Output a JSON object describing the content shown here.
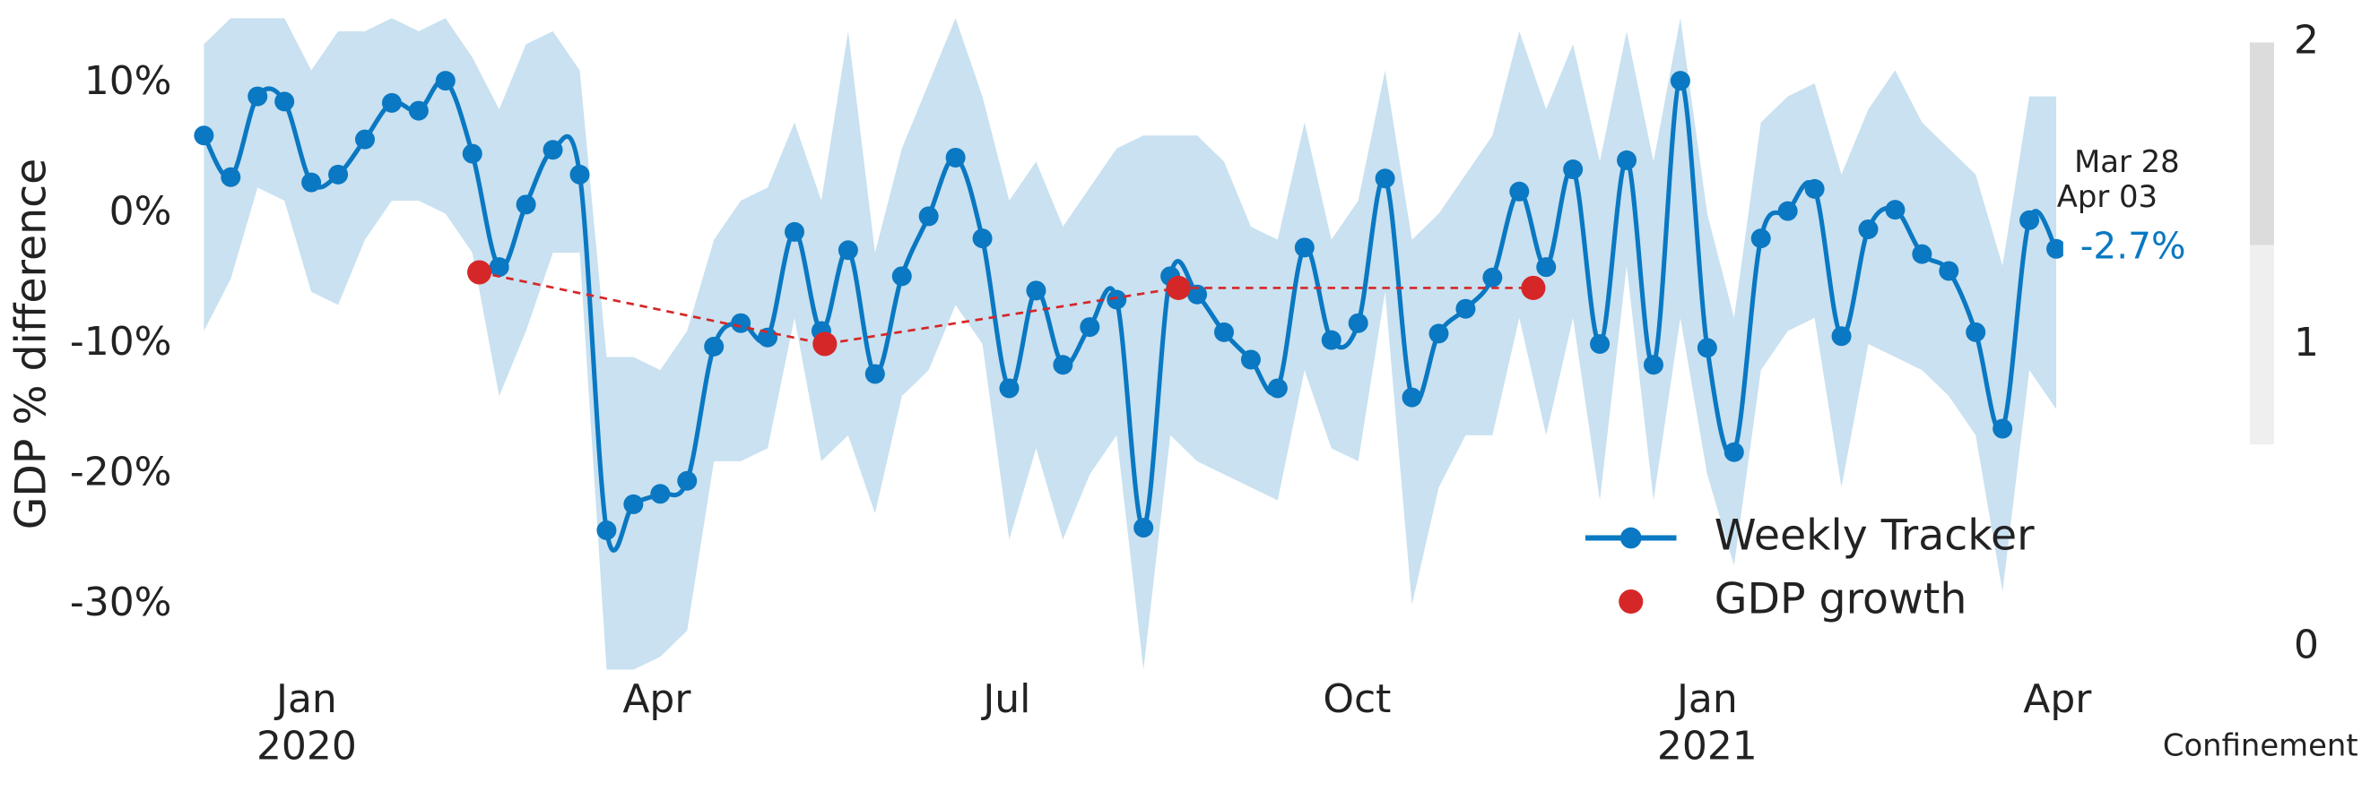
{
  "chart_data": {
    "type": "line",
    "y_label": "GDP % difference",
    "xlim": [
      -1,
      15.05
    ],
    "ylim": [
      -35,
      15
    ],
    "xticks": [
      {
        "value": 0,
        "label": "Jan"
      },
      {
        "value": 3,
        "label": "Apr"
      },
      {
        "value": 6,
        "label": "Jul"
      },
      {
        "value": 9,
        "label": "Oct"
      },
      {
        "value": 12,
        "label": "Jan"
      },
      {
        "value": 15,
        "label": "Apr"
      }
    ],
    "x_year_labels": [
      {
        "value": 0,
        "label": "2020"
      },
      {
        "value": 12,
        "label": "2021"
      }
    ],
    "yticks": [
      {
        "value": 10,
        "label": "10%"
      },
      {
        "value": 0,
        "label": "0%"
      },
      {
        "value": -10,
        "label": "-10%"
      },
      {
        "value": -20,
        "label": "-20%"
      },
      {
        "value": -30,
        "label": "-30%"
      }
    ],
    "x": [
      -0.88,
      -0.65,
      -0.42,
      -0.19,
      0.04,
      0.27,
      0.5,
      0.73,
      0.96,
      1.19,
      1.42,
      1.65,
      1.88,
      2.11,
      2.34,
      2.57,
      2.8,
      3.03,
      3.26,
      3.49,
      3.72,
      3.95,
      4.18,
      4.41,
      4.64,
      4.87,
      5.1,
      5.33,
      5.56,
      5.79,
      6.02,
      6.25,
      6.48,
      6.71,
      6.94,
      7.17,
      7.4,
      7.63,
      7.86,
      8.09,
      8.32,
      8.55,
      8.78,
      9.01,
      9.24,
      9.47,
      9.7,
      9.93,
      10.16,
      10.39,
      10.62,
      10.85,
      11.08,
      11.31,
      11.54,
      11.77,
      12.0,
      12.23,
      12.46,
      12.69,
      12.92,
      13.15,
      13.38,
      13.61,
      13.84,
      14.07,
      14.3,
      14.53,
      14.76,
      14.99
    ],
    "band": {
      "color": "#c9e1f0",
      "upper": [
        13,
        15,
        15,
        15,
        11,
        14,
        14,
        15,
        14,
        15,
        12,
        8,
        13,
        14,
        11,
        -11,
        -11,
        -12,
        -9,
        -2,
        1,
        2,
        7,
        1,
        14,
        -3,
        5,
        10,
        15,
        9,
        1,
        4,
        -1,
        2,
        5,
        6,
        6,
        6,
        4,
        -1,
        -2,
        7,
        -2,
        1,
        11,
        -2,
        0,
        3,
        6,
        14,
        8,
        13,
        4,
        14,
        4,
        15,
        0,
        -8,
        7,
        9,
        10,
        3,
        8,
        11,
        7,
        5,
        3,
        -4,
        9,
        9
      ],
      "lower": [
        -9,
        -5,
        2,
        1,
        -6,
        -7,
        -2,
        1,
        1,
        0,
        -3,
        -14,
        -9,
        -3,
        -3,
        -35,
        -35,
        -34,
        -32,
        -19,
        -19,
        -18,
        -8,
        -19,
        -17,
        -23,
        -14,
        -12,
        -7,
        -10,
        -25,
        -18,
        -25,
        -20,
        -17,
        -35,
        -17,
        -19,
        -20,
        -21,
        -22,
        -12,
        -18,
        -19,
        -6,
        -30,
        -21,
        -17,
        -17,
        -8,
        -17,
        -8,
        -22,
        -4,
        -22,
        -8,
        -20,
        -27,
        -12,
        -9,
        -8,
        -21,
        -10,
        -11,
        -12,
        -14,
        -17,
        -29,
        -12,
        -15
      ]
    },
    "series": [
      {
        "name": "Weekly Tracker",
        "color": "#0a78c2",
        "values": [
          6.0,
          2.8,
          9.0,
          8.6,
          2.4,
          3.0,
          5.7,
          8.5,
          7.9,
          10.2,
          4.6,
          -4.1,
          0.7,
          4.9,
          3.0,
          -24.3,
          -22.3,
          -21.5,
          -20.5,
          -10.2,
          -8.4,
          -9.5,
          -1.4,
          -9.0,
          -2.8,
          -12.3,
          -4.8,
          -0.2,
          4.3,
          -1.9,
          -13.4,
          -5.9,
          -11.6,
          -8.7,
          -6.6,
          -24.1,
          -4.8,
          -6.2,
          -9.1,
          -11.2,
          -13.4,
          -2.6,
          -9.7,
          -8.4,
          2.7,
          -14.1,
          -9.2,
          -7.3,
          -4.9,
          1.7,
          -4.1,
          3.4,
          -10.0,
          4.1,
          -11.6,
          10.2,
          -10.3,
          -18.3,
          -1.9,
          0.2,
          1.9,
          -9.4,
          -1.2,
          0.3,
          -3.1,
          -4.4,
          -9.1,
          -16.5,
          -0.5,
          -2.7
        ]
      },
      {
        "name": "GDP growth",
        "color": "#d62728",
        "x": [
          1.48,
          4.44,
          7.47,
          10.51
        ],
        "values": [
          -4.5,
          -10.0,
          -5.7,
          -5.7
        ]
      }
    ],
    "annotations": [
      "Mar 28",
      "Apr 03",
      "-2.7%"
    ],
    "colorbar": {
      "label": "Confinement",
      "ylim": [
        0,
        2
      ],
      "yticks": [
        0,
        1,
        2
      ],
      "segments": [
        {
          "from": 0.67,
          "to": 1.33,
          "color": "#efefef"
        },
        {
          "from": 1.33,
          "to": 2,
          "color": "#dcdcdc"
        }
      ]
    }
  }
}
